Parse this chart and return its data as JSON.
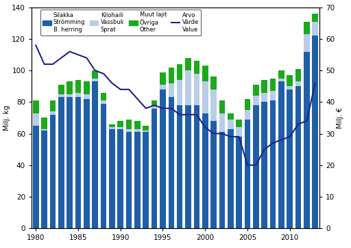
{
  "years": [
    1980,
    1981,
    1982,
    1983,
    1984,
    1985,
    1986,
    1987,
    1988,
    1989,
    1990,
    1991,
    1992,
    1993,
    1994,
    1995,
    1996,
    1997,
    1998,
    1999,
    2000,
    2001,
    2002,
    2003,
    2004,
    2005,
    2006,
    2007,
    2008,
    2009,
    2010,
    2011,
    2012,
    2013
  ],
  "silakka": [
    65,
    62,
    72,
    83,
    83,
    83,
    82,
    93,
    79,
    63,
    63,
    61,
    61,
    61,
    76,
    88,
    83,
    78,
    78,
    78,
    73,
    68,
    61,
    63,
    58,
    69,
    78,
    80,
    81,
    93,
    88,
    90,
    112,
    122
  ],
  "kilohaili": [
    8,
    1,
    2,
    2,
    2,
    3,
    3,
    2,
    2,
    1,
    1,
    2,
    2,
    1,
    1,
    3,
    9,
    16,
    22,
    20,
    20,
    20,
    12,
    6,
    6,
    6,
    6,
    6,
    6,
    2,
    2,
    3,
    11,
    9
  ],
  "muut_lajit": [
    8,
    7,
    7,
    6,
    8,
    8,
    8,
    5,
    5,
    2,
    4,
    6,
    5,
    3,
    4,
    8,
    10,
    10,
    8,
    8,
    10,
    8,
    8,
    4,
    5,
    7,
    7,
    8,
    8,
    5,
    7,
    8,
    8,
    5
  ],
  "arvo": [
    58,
    52,
    52,
    54,
    56,
    55,
    54,
    50,
    49,
    46,
    44,
    44,
    41,
    38,
    39,
    38,
    38,
    36,
    36,
    36,
    32,
    30,
    30,
    29,
    29,
    20,
    20,
    25,
    27,
    28,
    29,
    33,
    34,
    46
  ],
  "silakka_color": "#1f5fa6",
  "kilohaili_color": "#b8cde8",
  "muut_lajit_color": "#1aaa1a",
  "arvo_color": "#20208a",
  "ylabel_left": "Milj. kg",
  "ylabel_right": "Milj. €",
  "ylim_left": [
    0,
    140
  ],
  "ylim_right": [
    0,
    70
  ],
  "yticks_left": [
    0,
    20,
    40,
    60,
    80,
    100,
    120,
    140
  ],
  "yticks_right": [
    0,
    10,
    20,
    30,
    40,
    50,
    60,
    70
  ],
  "xticks": [
    1980,
    1985,
    1990,
    1995,
    2000,
    2005,
    2010
  ],
  "legend_labels": [
    "Silakka\nStrömming\nB. herring",
    "Kilohaili\nVassbuk\nSprat",
    "Muut lajit\nÖvriga\nOther",
    "Arvo\nVärde\nValue"
  ],
  "figsize": [
    5.12,
    3.63
  ],
  "dpi": 100,
  "xlim": [
    1979.5,
    2013.5
  ]
}
